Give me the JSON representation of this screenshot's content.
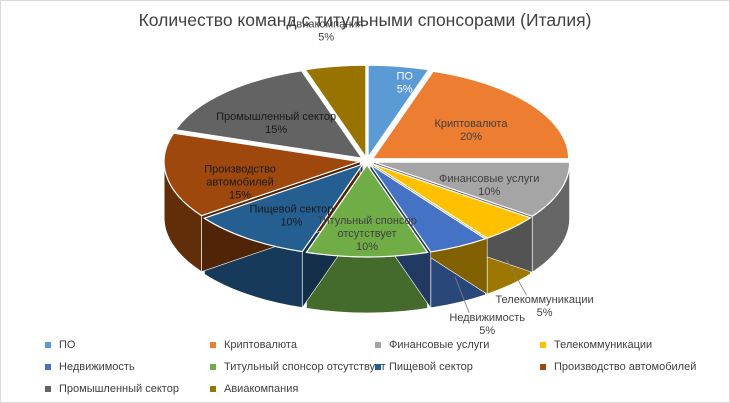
{
  "chart_data": {
    "type": "pie",
    "style": "3d-exploded",
    "title": "Количество команд с  титульными спонсорами (Италия)",
    "legend_position": "bottom",
    "slices": [
      {
        "name": "ПО",
        "value": 5,
        "label": "5%",
        "color": "#5B9BD5"
      },
      {
        "name": "Криптовалюта",
        "value": 20,
        "label": "20%",
        "color": "#ED7D31"
      },
      {
        "name": "Финансовые услуги",
        "value": 10,
        "label": "10%",
        "color": "#A5A5A5"
      },
      {
        "name": "Телекоммуникации",
        "value": 5,
        "label": "5%",
        "color": "#FFC000"
      },
      {
        "name": "Недвижимость",
        "value": 5,
        "label": "5%",
        "color": "#4472C4"
      },
      {
        "name": "Титульный спонсор отсутствует",
        "value": 10,
        "label": "10%",
        "color": "#70AD47"
      },
      {
        "name": "Пищевой сектор",
        "value": 10,
        "label": "10%",
        "color": "#255E91"
      },
      {
        "name": "Производство автомобилей",
        "value": 15,
        "label": "15%",
        "color": "#9E480E"
      },
      {
        "name": "Промышленный сектор",
        "value": 15,
        "label": "15%",
        "color": "#636363"
      },
      {
        "name": "Авиакомпания",
        "value": 5,
        "label": "5%",
        "color": "#997300"
      }
    ]
  }
}
